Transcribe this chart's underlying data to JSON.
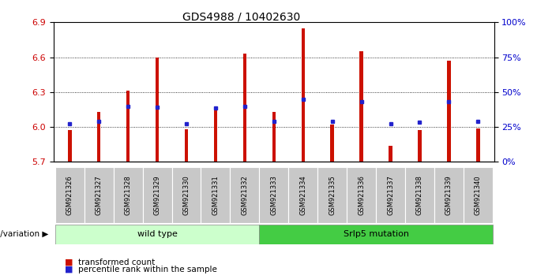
{
  "title": "GDS4988 / 10402630",
  "samples": [
    "GSM921326",
    "GSM921327",
    "GSM921328",
    "GSM921329",
    "GSM921330",
    "GSM921331",
    "GSM921332",
    "GSM921333",
    "GSM921334",
    "GSM921335",
    "GSM921336",
    "GSM921337",
    "GSM921338",
    "GSM921339",
    "GSM921340"
  ],
  "red_values": [
    5.97,
    6.13,
    6.31,
    6.6,
    5.98,
    6.15,
    6.63,
    6.13,
    6.85,
    6.02,
    6.65,
    5.84,
    5.97,
    6.57,
    5.99
  ],
  "blue_values": [
    6.03,
    6.05,
    6.18,
    6.17,
    6.03,
    6.16,
    6.18,
    6.05,
    6.24,
    6.05,
    6.22,
    6.03,
    6.04,
    6.22,
    6.05
  ],
  "ymin": 5.7,
  "ymax": 6.9,
  "yticks_left": [
    5.7,
    6.0,
    6.3,
    6.6,
    6.9
  ],
  "yticks_right": [
    0,
    25,
    50,
    75,
    100
  ],
  "bar_color": "#cc1100",
  "dot_color": "#2222cc",
  "n_wild": 7,
  "n_mut": 8,
  "wild_type_label": "wild type",
  "mutation_label": "Srlp5 mutation",
  "genotype_label": "genotype/variation",
  "legend_red": "transformed count",
  "legend_blue": "percentile rank within the sample",
  "wild_type_color": "#ccffcc",
  "mutation_color": "#44cc44",
  "left_axis_color": "#cc0000",
  "right_axis_color": "#0000cc",
  "gray_box_color": "#c8c8c8",
  "bar_width": 0.12
}
